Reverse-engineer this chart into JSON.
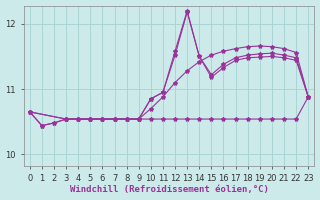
{
  "bg_color": "#cceaea",
  "grid_color": "#aad4d4",
  "line_color": "#993399",
  "marker": "*",
  "marker_size": 3,
  "xlabel": "Windchill (Refroidissement éolien,°C)",
  "xlabel_fontsize": 6.5,
  "tick_fontsize": 6,
  "xlim": [
    -0.5,
    23.5
  ],
  "ylim": [
    9.82,
    12.28
  ],
  "yticks": [
    10,
    11,
    12
  ],
  "xticks": [
    0,
    1,
    2,
    3,
    4,
    5,
    6,
    7,
    8,
    9,
    10,
    11,
    12,
    13,
    14,
    15,
    16,
    17,
    18,
    19,
    20,
    21,
    22,
    23
  ],
  "lines": [
    {
      "x": [
        0,
        1,
        2,
        3,
        4,
        5,
        6,
        7,
        8,
        9,
        10,
        11,
        12,
        13,
        14,
        15,
        16,
        17,
        18,
        19,
        20,
        21,
        22,
        23
      ],
      "y": [
        10.65,
        10.44,
        10.48,
        10.54,
        10.54,
        10.54,
        10.54,
        10.54,
        10.54,
        10.54,
        10.54,
        10.54,
        10.54,
        10.54,
        10.54,
        10.54,
        10.54,
        10.54,
        10.54,
        10.54,
        10.54,
        10.54,
        10.54,
        10.88
      ]
    },
    {
      "x": [
        0,
        1,
        2,
        3,
        4,
        5,
        6,
        7,
        8,
        9,
        10,
        11,
        12,
        13,
        14,
        15,
        16,
        17,
        18,
        19,
        20,
        21,
        22,
        23
      ],
      "y": [
        10.65,
        10.44,
        10.48,
        10.54,
        10.54,
        10.54,
        10.54,
        10.54,
        10.54,
        10.54,
        10.7,
        10.88,
        11.1,
        11.28,
        11.42,
        11.52,
        11.58,
        11.62,
        11.65,
        11.66,
        11.65,
        11.62,
        11.56,
        10.88
      ]
    },
    {
      "x": [
        0,
        3,
        4,
        5,
        6,
        7,
        8,
        9,
        10,
        11,
        12,
        13,
        14,
        15,
        16,
        17,
        18,
        19,
        20,
        21,
        22,
        23
      ],
      "y": [
        10.65,
        10.54,
        10.54,
        10.54,
        10.54,
        10.54,
        10.54,
        10.54,
        10.85,
        10.95,
        11.52,
        12.18,
        11.5,
        11.22,
        11.38,
        11.48,
        11.52,
        11.54,
        11.55,
        11.52,
        11.48,
        10.88
      ]
    },
    {
      "x": [
        0,
        3,
        4,
        5,
        6,
        7,
        8,
        9,
        10,
        11,
        12,
        13,
        14,
        15,
        16,
        17,
        18,
        19,
        20,
        21,
        22,
        23
      ],
      "y": [
        10.65,
        10.54,
        10.54,
        10.54,
        10.54,
        10.54,
        10.54,
        10.54,
        10.85,
        10.95,
        11.58,
        12.2,
        11.5,
        11.18,
        11.33,
        11.44,
        11.48,
        11.49,
        11.5,
        11.48,
        11.44,
        10.88
      ]
    }
  ]
}
